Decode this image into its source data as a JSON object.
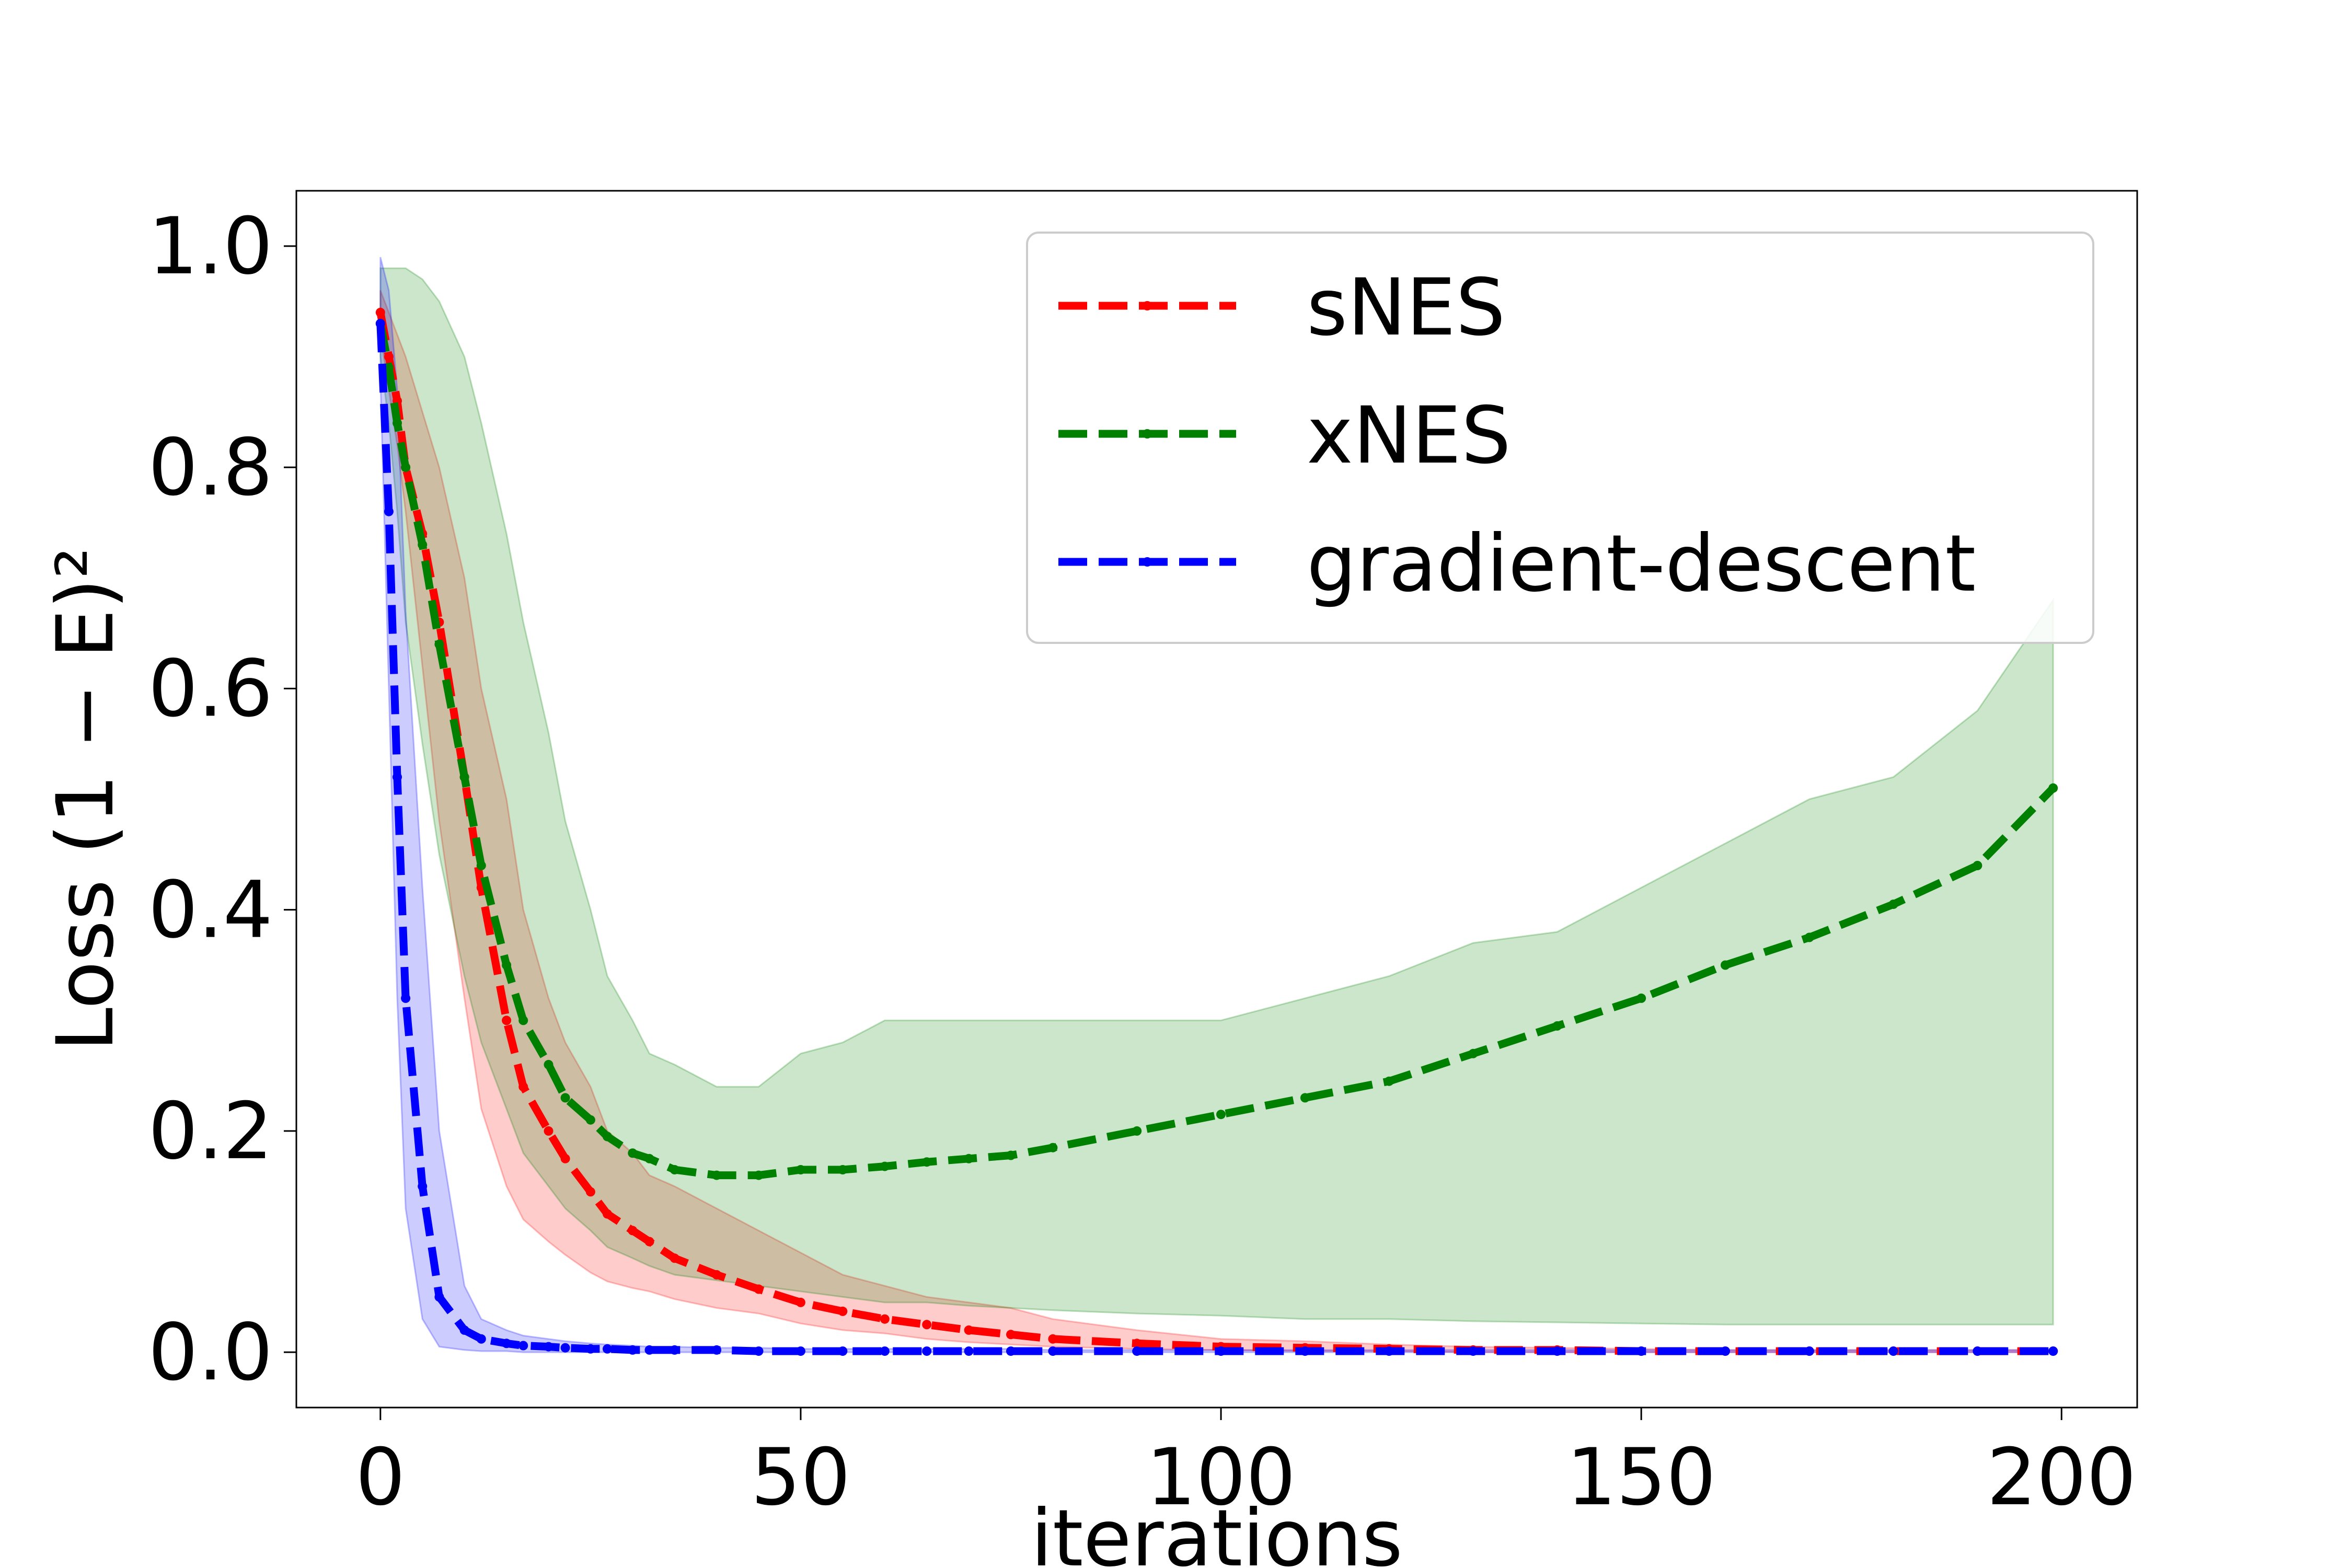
{
  "chart_data": {
    "type": "line",
    "title": "",
    "xlabel": "iterations",
    "ylabel": "Loss (1 − E)²",
    "xlim": [
      -10,
      209
    ],
    "ylim": [
      -0.05,
      1.05
    ],
    "xticks": [
      0,
      50,
      100,
      150,
      200
    ],
    "xtick_labels": [
      "0",
      "50",
      "100",
      "150",
      "200"
    ],
    "yticks": [
      0.0,
      0.2,
      0.4,
      0.6,
      0.8,
      1.0
    ],
    "ytick_labels": [
      "0.0",
      "0.2",
      "0.4",
      "0.6",
      "0.8",
      "1.0"
    ],
    "grid": false,
    "legend_position": "top-right",
    "x": [
      0,
      1,
      2,
      3,
      5,
      7,
      10,
      12,
      15,
      17,
      20,
      22,
      25,
      27,
      30,
      32,
      35,
      40,
      45,
      50,
      55,
      60,
      65,
      70,
      75,
      80,
      90,
      100,
      110,
      120,
      130,
      140,
      150,
      160,
      170,
      180,
      190,
      199
    ],
    "series": [
      {
        "name": "sNES",
        "color": "#ff0000",
        "values": [
          0.94,
          0.9,
          0.86,
          0.8,
          0.74,
          0.66,
          0.52,
          0.42,
          0.3,
          0.24,
          0.2,
          0.175,
          0.145,
          0.125,
          0.11,
          0.1,
          0.085,
          0.07,
          0.057,
          0.045,
          0.037,
          0.03,
          0.025,
          0.02,
          0.016,
          0.012,
          0.008,
          0.005,
          0.004,
          0.003,
          0.002,
          0.002,
          0.001,
          0.001,
          0.001,
          0.001,
          0.001,
          0.001
        ],
        "band_lower": [
          0.92,
          0.87,
          0.82,
          0.76,
          0.62,
          0.48,
          0.32,
          0.22,
          0.15,
          0.12,
          0.1,
          0.088,
          0.072,
          0.064,
          0.058,
          0.055,
          0.048,
          0.04,
          0.035,
          0.026,
          0.02,
          0.017,
          0.012,
          0.009,
          0.007,
          0.005,
          0.003,
          0.002,
          0.001,
          0.001,
          0.0,
          0.0,
          0.0,
          0.0,
          0.0,
          0.0,
          0.0,
          0.0
        ],
        "band_upper": [
          0.96,
          0.94,
          0.92,
          0.9,
          0.85,
          0.8,
          0.7,
          0.6,
          0.5,
          0.4,
          0.32,
          0.28,
          0.24,
          0.2,
          0.18,
          0.16,
          0.15,
          0.13,
          0.11,
          0.09,
          0.07,
          0.06,
          0.05,
          0.045,
          0.04,
          0.03,
          0.02,
          0.012,
          0.01,
          0.007,
          0.005,
          0.004,
          0.003,
          0.002,
          0.002,
          0.002,
          0.002,
          0.002
        ]
      },
      {
        "name": "xNES",
        "color": "#008000",
        "values": [
          0.93,
          0.89,
          0.84,
          0.8,
          0.73,
          0.64,
          0.52,
          0.44,
          0.35,
          0.3,
          0.26,
          0.23,
          0.21,
          0.195,
          0.18,
          0.175,
          0.165,
          0.16,
          0.16,
          0.165,
          0.165,
          0.168,
          0.172,
          0.175,
          0.178,
          0.185,
          0.2,
          0.215,
          0.23,
          0.245,
          0.27,
          0.295,
          0.32,
          0.35,
          0.375,
          0.405,
          0.44,
          0.51
        ],
        "band_lower": [
          0.9,
          0.84,
          0.76,
          0.66,
          0.55,
          0.45,
          0.34,
          0.28,
          0.22,
          0.18,
          0.15,
          0.13,
          0.11,
          0.095,
          0.085,
          0.078,
          0.07,
          0.065,
          0.06,
          0.055,
          0.05,
          0.045,
          0.045,
          0.042,
          0.04,
          0.038,
          0.035,
          0.033,
          0.03,
          0.03,
          0.028,
          0.027,
          0.026,
          0.025,
          0.025,
          0.025,
          0.025,
          0.025
        ],
        "band_upper": [
          0.98,
          0.98,
          0.98,
          0.98,
          0.97,
          0.95,
          0.9,
          0.84,
          0.74,
          0.66,
          0.56,
          0.48,
          0.4,
          0.34,
          0.3,
          0.27,
          0.26,
          0.24,
          0.24,
          0.27,
          0.28,
          0.3,
          0.3,
          0.3,
          0.3,
          0.3,
          0.3,
          0.3,
          0.32,
          0.34,
          0.37,
          0.38,
          0.42,
          0.46,
          0.5,
          0.52,
          0.58,
          0.68
        ]
      },
      {
        "name": "gradient-descent",
        "color": "#0000ff",
        "values": [
          0.93,
          0.76,
          0.52,
          0.32,
          0.15,
          0.05,
          0.02,
          0.012,
          0.008,
          0.006,
          0.005,
          0.004,
          0.003,
          0.003,
          0.002,
          0.002,
          0.002,
          0.002,
          0.001,
          0.001,
          0.001,
          0.001,
          0.001,
          0.001,
          0.001,
          0.001,
          0.001,
          0.001,
          0.001,
          0.001,
          0.001,
          0.001,
          0.001,
          0.001,
          0.001,
          0.001,
          0.001,
          0.001
        ],
        "band_lower": [
          0.88,
          0.6,
          0.32,
          0.13,
          0.03,
          0.005,
          0.002,
          0.001,
          0.001,
          0.0,
          0.0,
          0.0,
          0.0,
          0.0,
          0.0,
          0.0,
          0.0,
          0.0,
          0.0,
          0.0,
          0.0,
          0.0,
          0.0,
          0.0,
          0.0,
          0.0,
          0.0,
          0.0,
          0.0,
          0.0,
          0.0,
          0.0,
          0.0,
          0.0,
          0.0,
          0.0,
          0.0,
          0.0
        ],
        "band_upper": [
          0.99,
          0.96,
          0.87,
          0.67,
          0.42,
          0.2,
          0.06,
          0.03,
          0.02,
          0.015,
          0.012,
          0.01,
          0.008,
          0.007,
          0.006,
          0.005,
          0.005,
          0.004,
          0.004,
          0.003,
          0.003,
          0.003,
          0.003,
          0.003,
          0.003,
          0.002,
          0.002,
          0.002,
          0.002,
          0.002,
          0.002,
          0.002,
          0.002,
          0.002,
          0.002,
          0.002,
          0.002,
          0.002
        ]
      }
    ]
  }
}
